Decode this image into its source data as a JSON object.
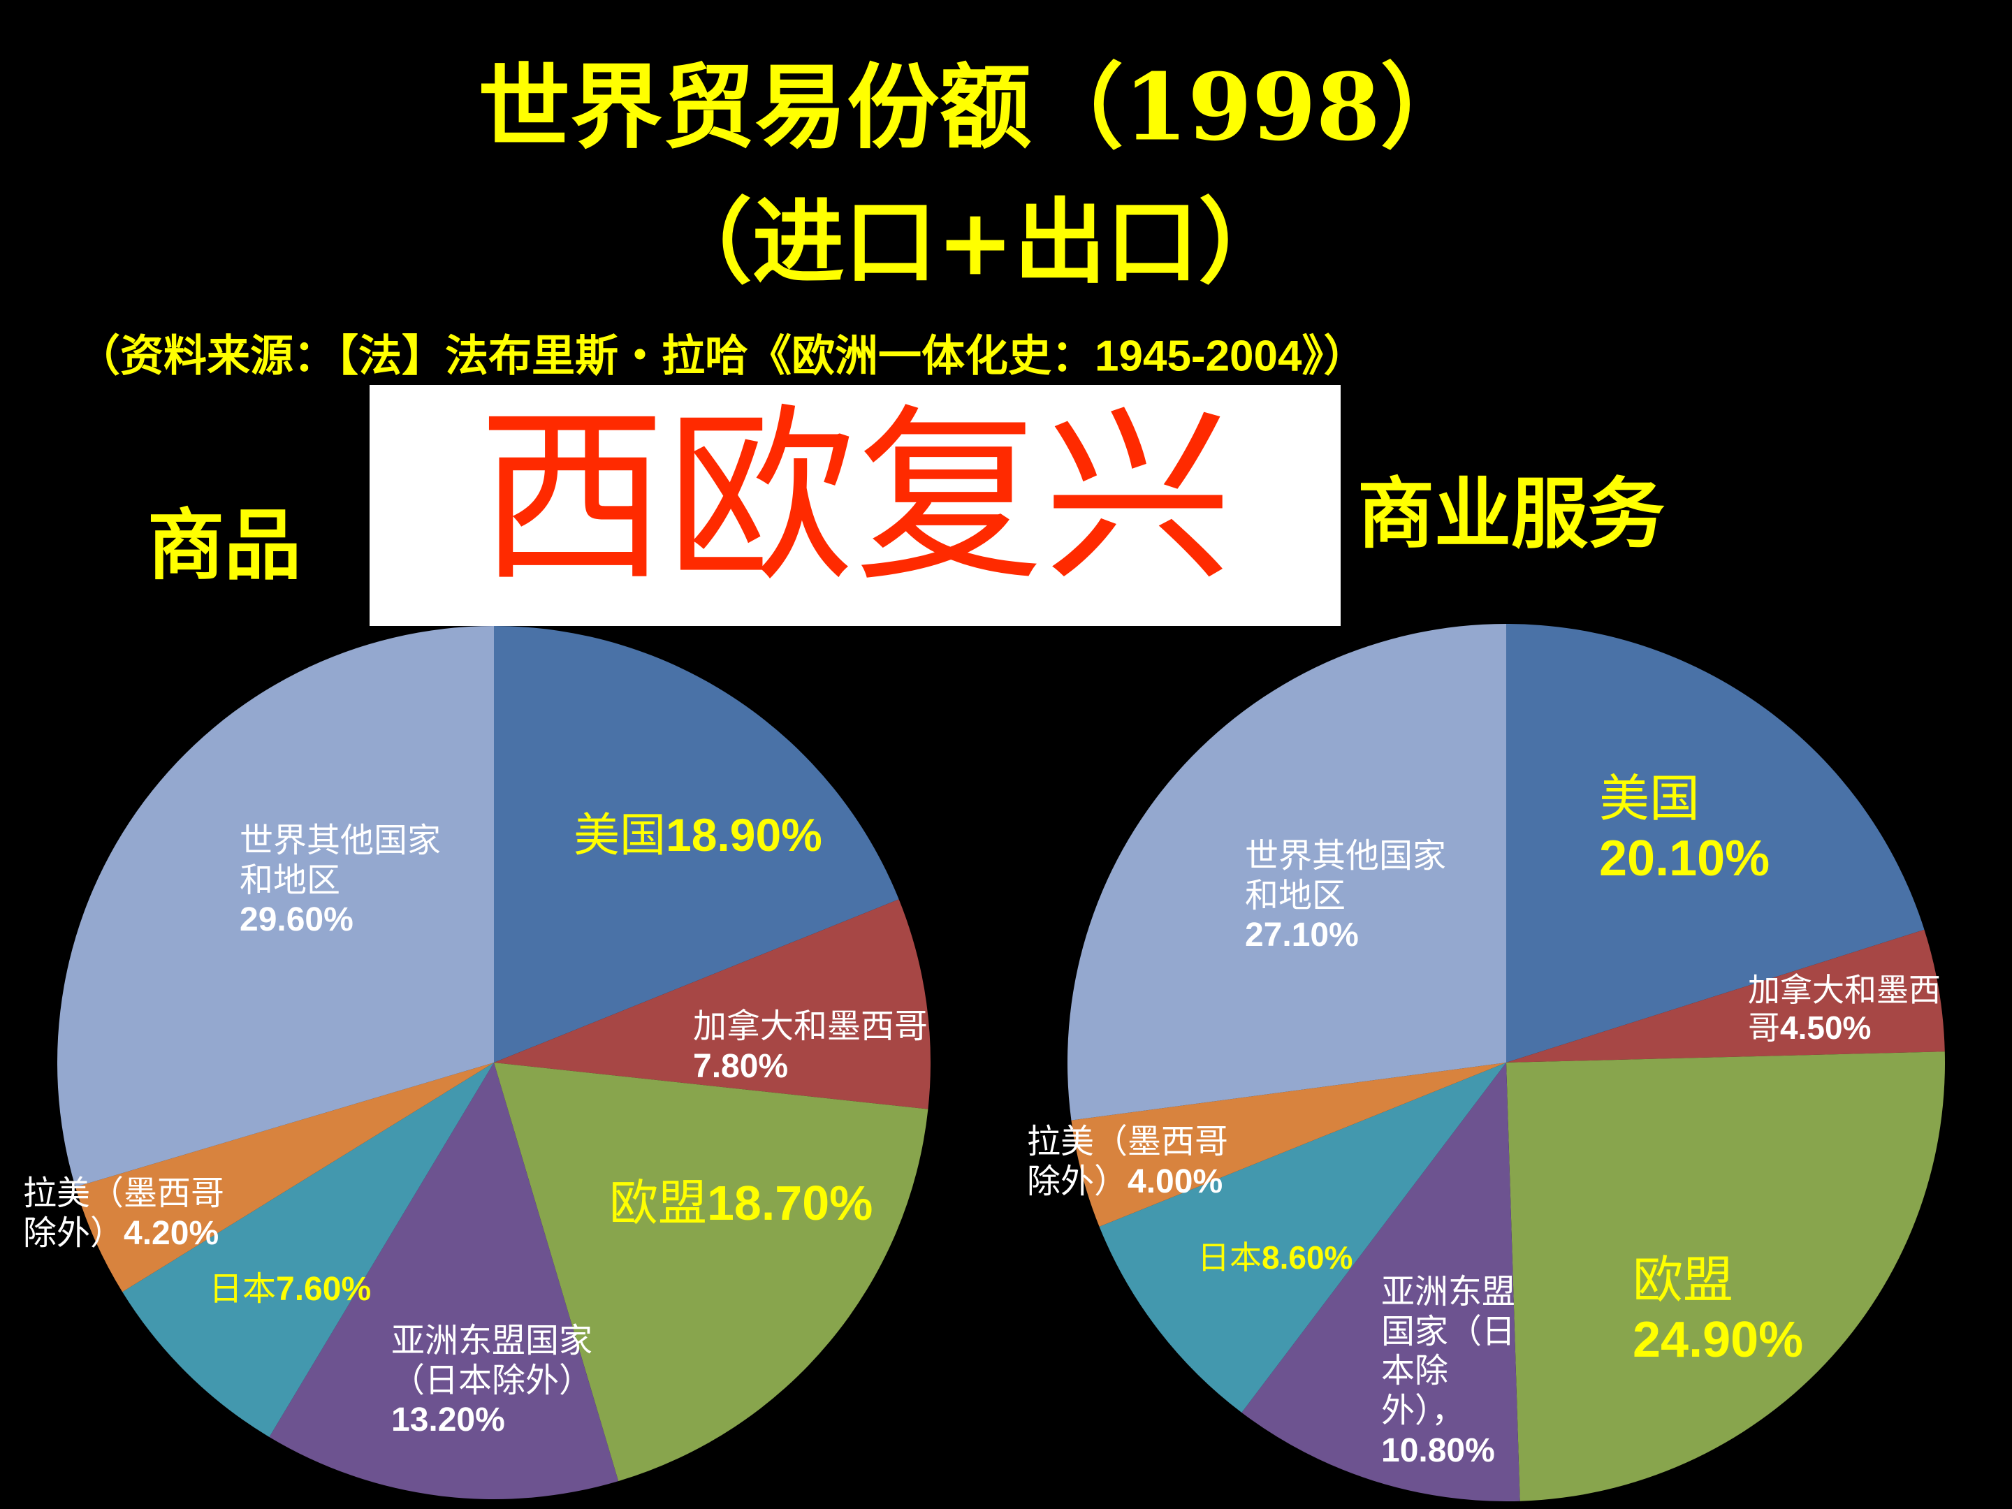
{
  "title": "世界贸易份额（1998）",
  "subtitle": "（进口+出口）",
  "source": "（资料来源：【法】法布里斯・拉哈《欧洲一体化史：1945-2004》）",
  "banner": "西欧复兴",
  "chart_data": [
    {
      "type": "pie",
      "title": "商品",
      "categories": [
        "美国",
        "加拿大和墨西哥",
        "欧盟",
        "亚洲东盟国家（日本除外）",
        "日本",
        "拉美（墨西哥除外）",
        "世界其他国家和地区"
      ],
      "values": [
        18.9,
        7.8,
        18.7,
        13.2,
        7.6,
        4.2,
        29.6
      ],
      "value_labels": [
        "18.90%",
        "7.80%",
        "18.70%",
        "13.20%",
        "7.60%",
        "4.20%",
        "29.60%"
      ],
      "colors": [
        "#4a72a7",
        "#a74745",
        "#88a54d",
        "#6d5390",
        "#4398ae",
        "#d8833e",
        "#94a8cf"
      ]
    },
    {
      "type": "pie",
      "title": "商业服务",
      "categories": [
        "美国",
        "加拿大和墨西哥",
        "欧盟",
        "亚洲东盟国家（日本除外），",
        "日本",
        "拉美（墨西哥除外）",
        "世界其他国家和地区"
      ],
      "values": [
        20.1,
        4.5,
        24.9,
        10.8,
        8.6,
        4.0,
        27.1
      ],
      "value_labels": [
        "20.10%",
        "4.50%",
        "24.90%",
        "10.80%",
        "8.60%",
        "4.00%",
        "27.10%"
      ],
      "colors": [
        "#4a72a7",
        "#a74745",
        "#88a54d",
        "#6d5390",
        "#4398ae",
        "#d8833e",
        "#94a8cf"
      ]
    }
  ]
}
